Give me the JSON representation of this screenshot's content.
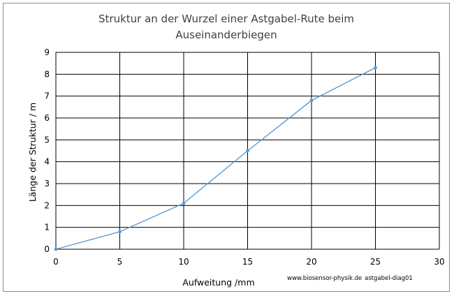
{
  "chart_data": {
    "type": "line",
    "title_line1": "Struktur an der Wurzel einer Astgabel-Rute beim",
    "title_line2": "Auseinanderbiegen",
    "xlabel": "Aufweitung /mm",
    "ylabel": "Länge der Struktur / m",
    "xlim": [
      0,
      30
    ],
    "ylim": [
      0,
      9
    ],
    "x_ticks": [
      0,
      5,
      10,
      15,
      20,
      25,
      30
    ],
    "y_ticks": [
      0,
      1,
      2,
      3,
      4,
      5,
      6,
      7,
      8,
      9
    ],
    "grid": true,
    "legend": "none",
    "series": [
      {
        "color": "#5b9bd5",
        "x": [
          0,
          5,
          10,
          15,
          20,
          25
        ],
        "y": [
          0,
          0.8,
          2.1,
          4.5,
          6.8,
          8.3
        ]
      }
    ],
    "credits": {
      "website": "www.biosensor-physik.de",
      "diagram_id": "astgabel-diag01"
    }
  }
}
